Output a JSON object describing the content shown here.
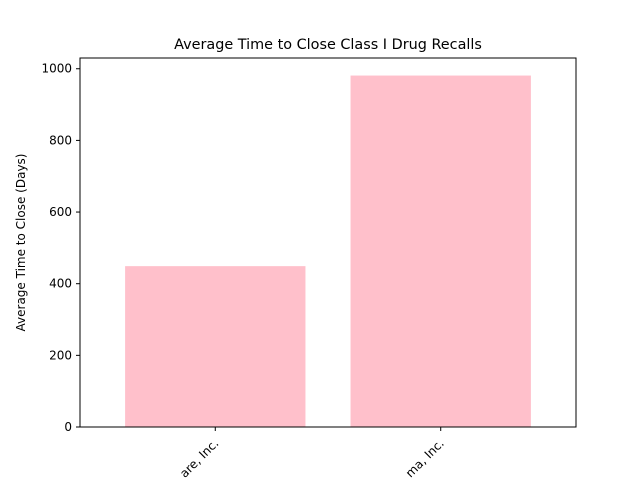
{
  "chart_data": {
    "type": "bar",
    "title": "Average Time to Close Class I Drug Recalls",
    "xlabel": "",
    "ylabel": "Average Time to Close (Days)",
    "categories": [
      "are, Inc.",
      "ma, Inc."
    ],
    "values": [
      449,
      981
    ],
    "ylim": [
      0,
      1030
    ],
    "yticks": [
      0,
      200,
      400,
      600,
      800,
      1000
    ],
    "ytick_labels": [
      "0",
      "200",
      "400",
      "600",
      "800",
      "1000"
    ],
    "grid": false,
    "bar_color": "#ffc0cb"
  }
}
